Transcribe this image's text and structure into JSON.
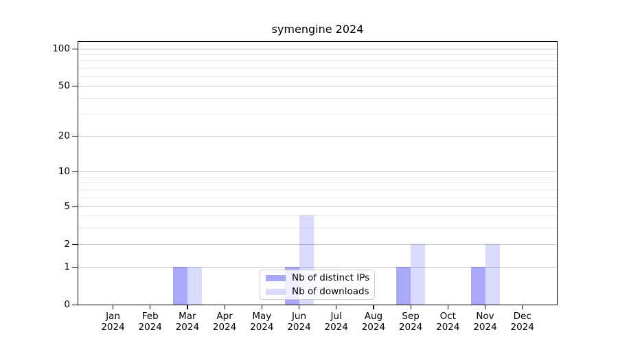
{
  "title": "symengine 2024",
  "chart_data": {
    "type": "bar",
    "title": "symengine 2024",
    "categories": [
      "Jan 2024",
      "Feb 2024",
      "Mar 2024",
      "Apr 2024",
      "May 2024",
      "Jun 2024",
      "Jul 2024",
      "Aug 2024",
      "Sep 2024",
      "Oct 2024",
      "Nov 2024",
      "Dec 2024"
    ],
    "series": [
      {
        "name": "Nb of distinct IPs",
        "color_hex": "#a6a6f4",
        "fill": "rgba(10,10,235,0.35)",
        "values": [
          0,
          0,
          1,
          0,
          0,
          1,
          0,
          0,
          1,
          0,
          1,
          0
        ]
      },
      {
        "name": "Nb of downloads",
        "color_hex": "#d9d9fb",
        "fill": "rgba(10,10,235,0.15)",
        "values": [
          0,
          0,
          1,
          0,
          0,
          4,
          0,
          0,
          2,
          0,
          2,
          0
        ]
      }
    ],
    "yscale": "symlog",
    "y_ticks": [
      0,
      1,
      2,
      5,
      10,
      20,
      50,
      100
    ],
    "y_minor_ticks": [
      3,
      4,
      6,
      7,
      8,
      9,
      30,
      40,
      60,
      70,
      80,
      90
    ],
    "ylim": [
      0,
      115
    ],
    "xlabel": "",
    "ylabel": "",
    "grid": true,
    "legend_position": "lower center",
    "grid_major_color": "#c3c3c3",
    "grid_minor_color": "#ebebeb"
  }
}
